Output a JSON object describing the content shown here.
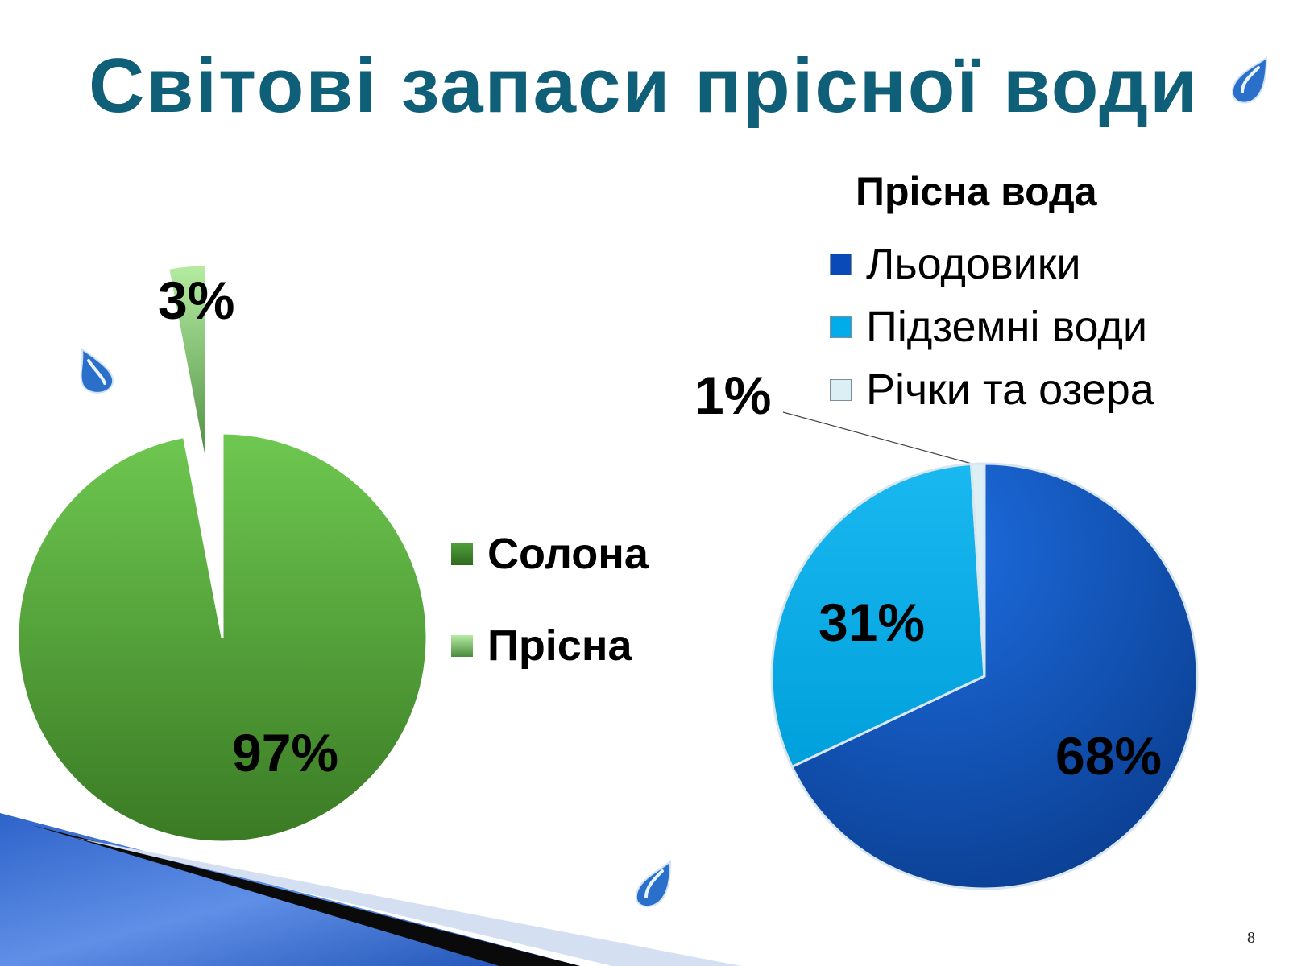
{
  "slide": {
    "title": "Світові запаси прісної води",
    "page_number": "8"
  },
  "colors": {
    "title": "#0f5f78",
    "salt": "#4e9e3a",
    "fresh": "#9ddc8a",
    "glaciers": "#0a4ab8",
    "groundwater": "#00adeb",
    "rivers": "#dbeff4"
  },
  "chart_data": [
    {
      "type": "pie",
      "title": "",
      "categories": [
        "Солона",
        "Прісна"
      ],
      "values": [
        97,
        3
      ],
      "labels": [
        "97%",
        "3%"
      ],
      "exploded": [
        "Прісна"
      ],
      "legend_position": "right"
    },
    {
      "type": "pie",
      "title": "Прісна вода",
      "categories": [
        "Льодовики",
        "Підземні води",
        "Річки та озера"
      ],
      "values": [
        68,
        31,
        1
      ],
      "labels": [
        "68%",
        "31%",
        "1%"
      ],
      "legend_position": "top-right"
    }
  ],
  "decor": {
    "icons": [
      "water-drop-icon",
      "water-drop-icon",
      "water-drop-icon"
    ]
  }
}
